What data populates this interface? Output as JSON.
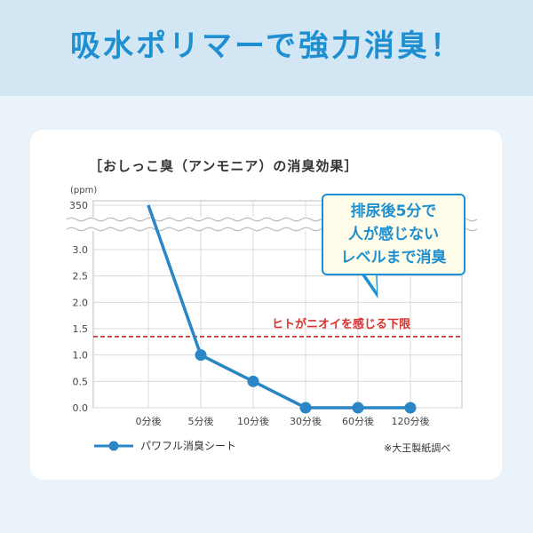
{
  "headline": "吸水ポリマーで強力消臭！",
  "callout": "排尿後5分で\n人が感じない\nレベルまで消臭",
  "footnote": "※大王製紙調べ",
  "chart_data": {
    "type": "line",
    "title": "［おしっこ臭（アンモニア）の消臭効果］",
    "yunit": "(ppm)",
    "categories": [
      "0分後",
      "5分後",
      "10分後",
      "30分後",
      "60分後",
      "120分後"
    ],
    "series": [
      {
        "name": "パワフル消臭シート",
        "values": [
          350,
          1.0,
          0.5,
          0.0,
          0.0,
          0.0
        ],
        "color": "#2a86c4"
      }
    ],
    "yticks": [
      "0.0",
      "0.5",
      "1.0",
      "1.5",
      "2.0",
      "2.5",
      "3.0",
      "350"
    ],
    "ylim": [
      0,
      3.0
    ],
    "axis_break": "between 3.0 and 350",
    "grid": true,
    "legend_position": "bottom-left",
    "threshold": {
      "value": 1.35,
      "label": "ヒトがニオイを感じる下限",
      "color": "#d9322e"
    }
  }
}
